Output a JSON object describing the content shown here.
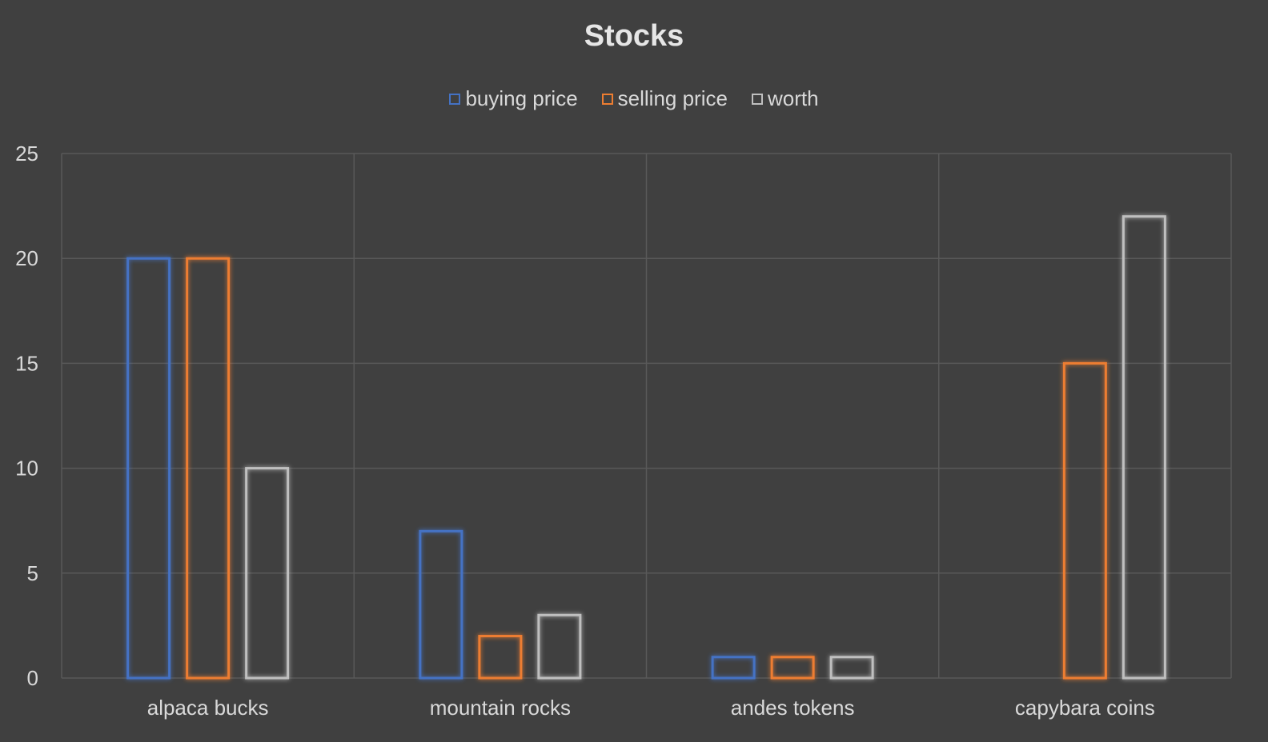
{
  "chart_data": {
    "type": "bar",
    "title": "Stocks",
    "xlabel": "",
    "ylabel": "",
    "categories": [
      "alpaca bucks",
      "mountain rocks",
      "andes tokens",
      "capybara coins"
    ],
    "series": [
      {
        "name": "buying price",
        "color": "#4472c4",
        "values": [
          20,
          7,
          1,
          0
        ]
      },
      {
        "name": "selling price",
        "color": "#ed7d31",
        "values": [
          20,
          2,
          1,
          15
        ]
      },
      {
        "name": "worth",
        "color": "#bfbfbf",
        "values": [
          10,
          3,
          1,
          22
        ]
      }
    ],
    "ylim": [
      0,
      25
    ],
    "yticks": [
      0,
      5,
      10,
      15,
      20,
      25
    ],
    "grid": true,
    "legend": "top"
  }
}
